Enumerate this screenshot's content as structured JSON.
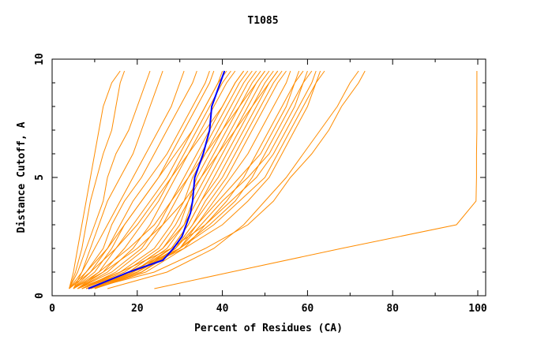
{
  "chart_data": {
    "type": "line",
    "title": "T1085",
    "xlabel": "Percent of Residues (CA)",
    "ylabel": "Distance Cutoff, A",
    "xlim": [
      0,
      100
    ],
    "ylim": [
      0,
      10
    ],
    "xticks": [
      "0",
      "20",
      "40",
      "60",
      "80",
      "100"
    ],
    "yticks": [
      "0",
      "5",
      "10"
    ],
    "grid": false,
    "colors": {
      "models": "#ff8c00",
      "highlight": "#0000ff"
    },
    "y_levels": [
      0.3,
      1,
      2,
      3,
      4,
      5,
      6,
      7,
      8,
      9,
      9.5
    ],
    "model_series": [
      [
        4,
        5,
        6,
        7,
        8,
        9,
        10,
        11,
        12,
        14,
        16
      ],
      [
        4,
        5.5,
        7,
        8,
        9,
        10.5,
        12,
        14,
        15,
        16,
        17
      ],
      [
        4,
        6,
        8,
        10,
        12,
        13,
        15,
        18,
        20,
        22,
        23
      ],
      [
        4,
        7,
        9,
        11,
        13,
        16,
        19,
        21,
        23,
        25,
        26
      ],
      [
        5,
        7,
        10,
        13,
        16,
        19,
        22,
        25,
        28,
        30,
        31
      ],
      [
        5,
        8,
        12,
        14,
        17,
        21,
        24,
        27,
        30,
        33,
        34
      ],
      [
        5,
        9,
        13,
        16,
        19,
        23,
        27,
        30,
        33,
        36,
        37
      ],
      [
        5,
        10,
        14,
        17,
        21,
        25,
        28,
        31,
        34,
        37,
        38
      ],
      [
        6,
        11,
        15,
        19,
        23,
        27,
        30,
        33,
        36,
        39,
        41
      ],
      [
        6,
        12,
        17,
        21,
        25,
        28,
        31,
        34,
        37,
        40,
        42
      ],
      [
        6,
        13,
        19,
        23,
        26,
        29,
        32,
        35,
        38,
        41,
        43
      ],
      [
        6,
        14,
        21,
        25,
        28,
        31,
        34,
        37,
        40,
        43,
        45
      ],
      [
        7,
        15,
        22,
        26,
        29,
        32,
        35,
        38,
        41,
        44,
        46
      ],
      [
        7,
        16,
        24,
        28,
        31,
        33,
        36,
        39,
        42,
        45,
        47
      ],
      [
        7,
        17,
        25,
        29,
        32,
        34,
        37,
        40,
        43,
        46,
        48
      ],
      [
        8,
        18,
        26,
        30,
        32,
        35,
        38,
        41,
        44,
        47,
        49
      ],
      [
        8,
        18,
        26,
        31,
        33,
        36,
        39,
        42,
        45,
        48,
        50
      ],
      [
        8,
        19,
        27,
        31,
        34,
        37,
        40,
        43,
        46,
        49,
        51
      ],
      [
        9,
        19,
        28,
        32,
        35,
        38,
        41,
        44,
        47,
        50,
        52
      ],
      [
        9,
        20,
        28,
        32,
        35,
        39,
        42,
        45,
        48,
        51,
        53
      ],
      [
        9,
        20,
        29,
        33,
        36,
        40,
        43,
        46,
        49,
        52,
        54
      ],
      [
        10,
        21,
        29,
        33,
        37,
        41,
        44,
        47,
        50,
        53,
        55
      ],
      [
        10,
        21,
        30,
        34,
        38,
        42,
        46,
        49,
        52,
        55,
        56
      ],
      [
        8,
        20,
        29,
        34,
        39,
        44,
        49,
        52,
        55,
        57,
        58
      ],
      [
        9,
        21,
        30,
        35,
        40,
        46,
        51,
        54,
        57,
        59,
        60
      ],
      [
        10,
        22,
        31,
        36,
        42,
        48,
        52,
        55,
        58,
        61,
        62
      ],
      [
        9,
        20,
        30,
        38,
        44,
        50,
        53,
        56,
        59,
        62,
        63
      ],
      [
        8,
        19,
        31,
        40,
        46,
        51,
        54,
        57,
        60,
        62,
        64
      ],
      [
        7,
        18,
        30,
        37,
        43,
        47,
        50,
        53,
        56,
        59,
        61
      ],
      [
        6,
        16,
        28,
        36,
        41,
        45,
        48,
        51,
        54,
        57,
        59
      ],
      [
        5,
        12,
        20,
        26,
        31,
        35,
        39,
        43,
        47,
        51,
        53
      ],
      [
        5,
        11,
        18,
        24,
        28,
        32,
        36,
        40,
        44,
        48,
        50
      ],
      [
        4,
        9,
        15,
        20,
        24,
        28,
        32,
        36,
        40,
        43,
        45
      ],
      [
        4,
        8,
        13,
        17,
        21,
        25,
        29,
        33,
        36,
        39,
        40
      ],
      [
        13,
        27,
        38,
        45,
        50,
        55,
        59,
        63,
        67,
        70,
        72
      ],
      [
        9,
        24,
        36,
        46,
        52,
        56,
        61,
        65,
        68,
        72,
        73.5
      ],
      [
        24,
        42,
        68,
        95,
        99.6,
        99.7,
        99.7,
        99.8,
        99.8,
        99.8,
        99.8
      ]
    ],
    "highlight_series": {
      "y": [
        0.3,
        1,
        1.5,
        2,
        2.5,
        3,
        3.5,
        4,
        5,
        6,
        7,
        8,
        8.5,
        9,
        9.5
      ],
      "x": [
        8.5,
        18,
        26,
        28.5,
        30.5,
        31.5,
        32.5,
        33,
        33.5,
        35.5,
        37,
        37.5,
        38.5,
        39.5,
        40.5
      ]
    }
  }
}
